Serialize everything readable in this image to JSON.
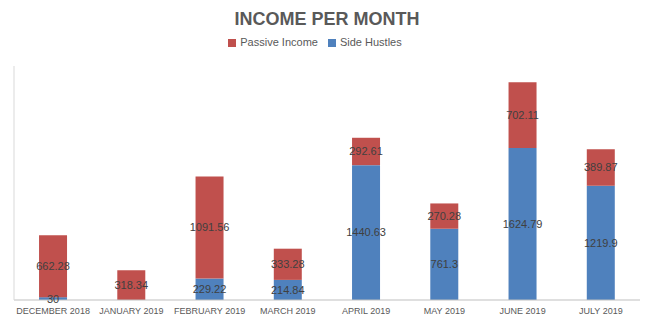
{
  "chart_data": {
    "type": "bar",
    "title": "INCOME PER MONTH",
    "categories": [
      "DECEMBER 2018",
      "JANUARY 2019",
      "FEBRUARY 2019",
      "MARCH 2019",
      "APRIL 2019",
      "MAY 2019",
      "JUNE 2019",
      "JULY 2019"
    ],
    "series": [
      {
        "name": "Side Hustles",
        "color": "#4f81bd",
        "values": [
          30,
          0,
          229.22,
          214.84,
          1440.63,
          761.3,
          1624.79,
          1219.9
        ]
      },
      {
        "name": "Passive Income",
        "color": "#c0504d",
        "values": [
          662.28,
          318.34,
          1091.56,
          333.28,
          292.61,
          270.28,
          702.11,
          389.87
        ]
      }
    ],
    "ylim": [
      0,
      2500
    ],
    "stacked": true,
    "data_labels": true,
    "legend": "top",
    "tick_labels": "x"
  }
}
